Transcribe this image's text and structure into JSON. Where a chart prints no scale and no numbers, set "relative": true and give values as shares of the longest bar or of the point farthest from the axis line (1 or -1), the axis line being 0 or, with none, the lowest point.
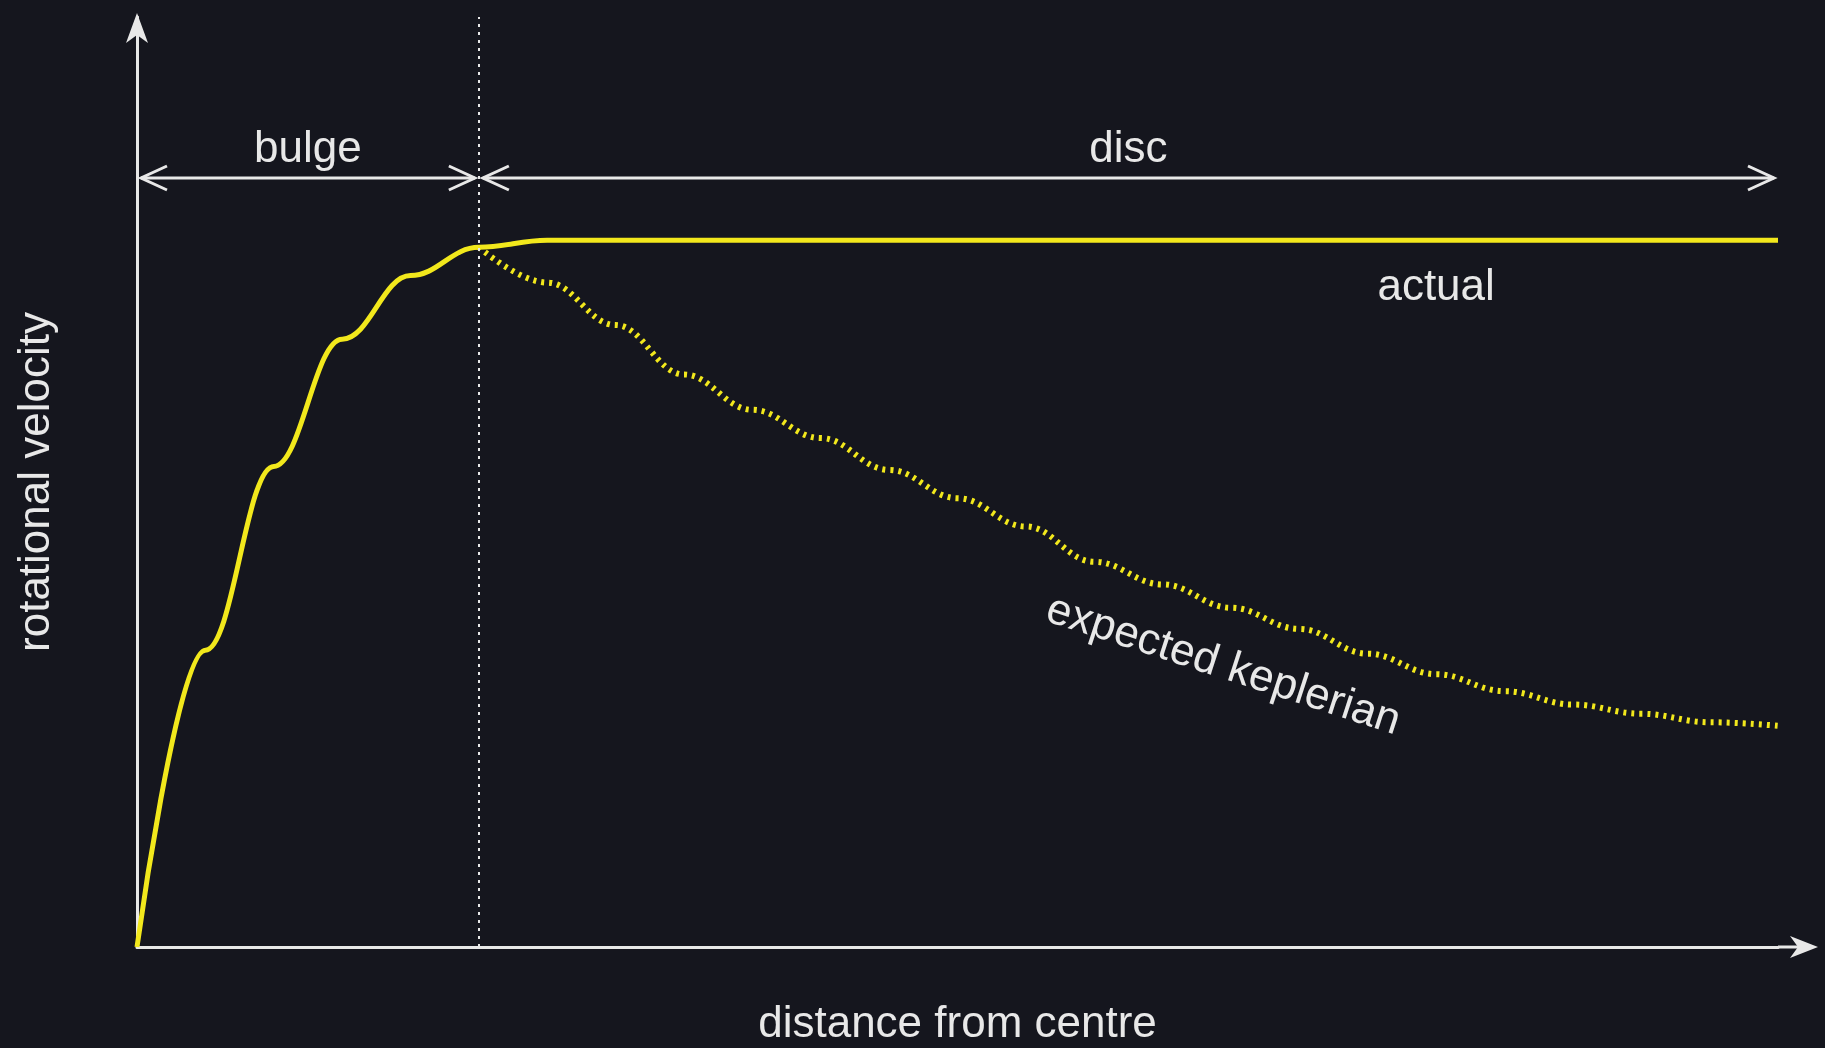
{
  "chart_data": {
    "type": "line",
    "relative": true,
    "xlabel": "distance from centre",
    "ylabel": "rotational velocity",
    "annotations": [
      "bulge",
      "disc"
    ],
    "categories": [
      null,
      null,
      null,
      null,
      null,
      null,
      null,
      null,
      null,
      null,
      null,
      null,
      null,
      null,
      null,
      null,
      null,
      null,
      null,
      null,
      null,
      null,
      null,
      null,
      null
    ],
    "series": [
      {
        "name": "actual",
        "color": "#f2e81c",
        "line_style": "solid",
        "values": [
          0,
          0.42,
          0.68,
          0.86,
          0.95,
          0.99,
          1,
          1,
          1,
          1,
          1,
          1,
          1,
          1,
          1,
          1,
          1,
          1,
          1,
          1,
          1,
          1,
          1,
          1,
          1
        ]
      },
      {
        "name": "expected keplerian",
        "color": "#f2e81c",
        "line_style": "dotted",
        "values": [
          null,
          null,
          null,
          null,
          null,
          0.99,
          0.94,
          0.88,
          0.81,
          0.76,
          0.72,
          0.675,
          0.635,
          0.595,
          0.545,
          0.513,
          0.48,
          0.45,
          0.415,
          0.386,
          0.362,
          0.343,
          0.33,
          0.318,
          0.313
        ]
      }
    ],
    "marker": "none",
    "grid": false,
    "legend": false
  }
}
